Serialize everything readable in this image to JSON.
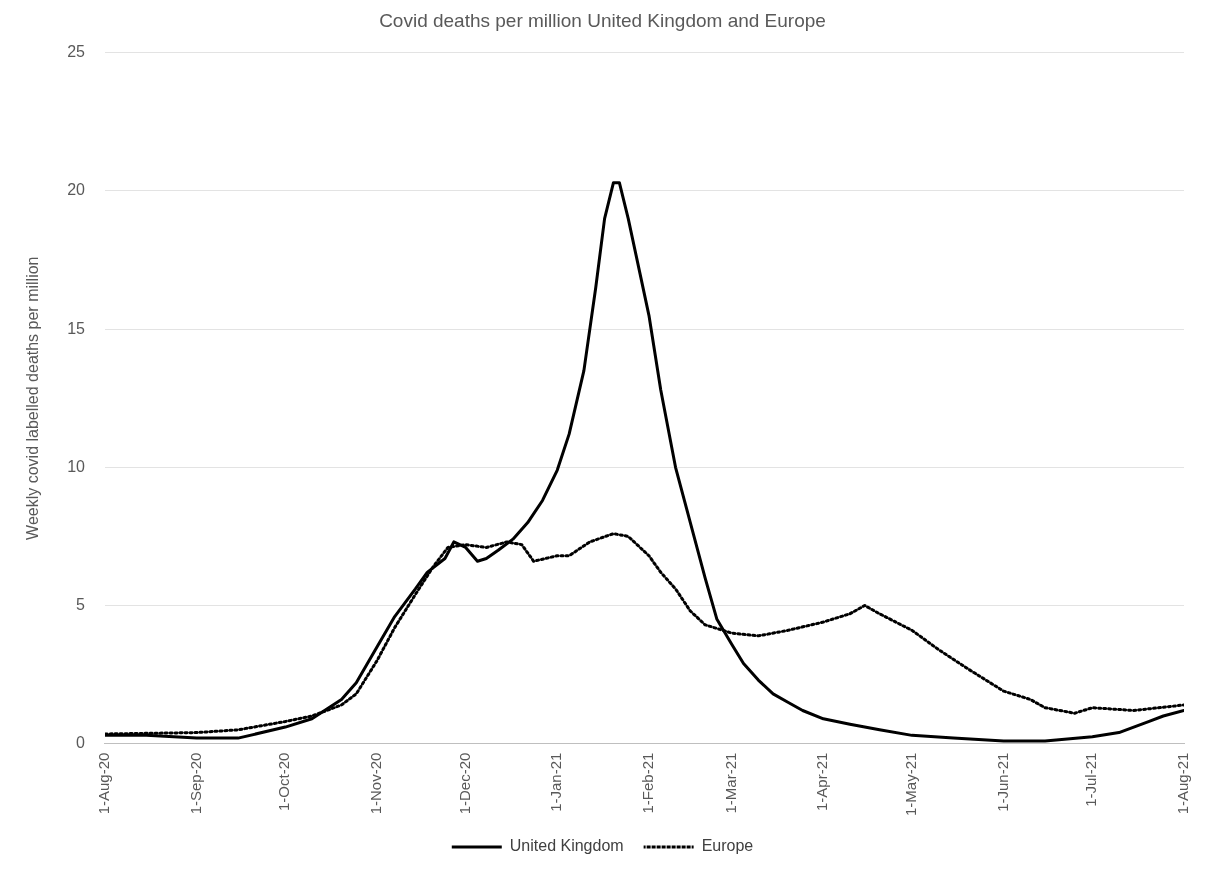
{
  "chart_data": {
    "type": "line",
    "title": "Covid deaths per million United Kingdom and Europe",
    "ylabel": "Weekly covid labelled deaths per million",
    "xlim": [
      "2020-08-01",
      "2021-08-01"
    ],
    "xticks": [
      {
        "value": "2020-08-01",
        "label": "1-Aug-20"
      },
      {
        "value": "2020-09-01",
        "label": "1-Sep-20"
      },
      {
        "value": "2020-10-01",
        "label": "1-Oct-20"
      },
      {
        "value": "2020-11-01",
        "label": "1-Nov-20"
      },
      {
        "value": "2020-12-01",
        "label": "1-Dec-20"
      },
      {
        "value": "2021-01-01",
        "label": "1-Jan-21"
      },
      {
        "value": "2021-02-01",
        "label": "1-Feb-21"
      },
      {
        "value": "2021-03-01",
        "label": "1-Mar-21"
      },
      {
        "value": "2021-04-01",
        "label": "1-Apr-21"
      },
      {
        "value": "2021-05-01",
        "label": "1-May-21"
      },
      {
        "value": "2021-06-01",
        "label": "1-Jun-21"
      },
      {
        "value": "2021-07-01",
        "label": "1-Jul-21"
      },
      {
        "value": "2021-08-01",
        "label": "1-Aug-21"
      }
    ],
    "ylim": [
      0,
      25
    ],
    "yticks": [
      0,
      5,
      10,
      15,
      20,
      25
    ],
    "grid": "y",
    "legend": "bottom",
    "marker": "none",
    "series": [
      {
        "name": "United Kingdom",
        "color": "#000000",
        "line_style": "solid",
        "x": [
          "2020-08-01",
          "2020-08-15",
          "2020-09-01",
          "2020-09-15",
          "2020-10-01",
          "2020-10-10",
          "2020-10-20",
          "2020-10-25",
          "2020-11-01",
          "2020-11-07",
          "2020-11-14",
          "2020-11-18",
          "2020-11-24",
          "2020-11-27",
          "2020-12-01",
          "2020-12-05",
          "2020-12-08",
          "2020-12-12",
          "2020-12-17",
          "2020-12-22",
          "2020-12-27",
          "2021-01-01",
          "2021-01-05",
          "2021-01-10",
          "2021-01-14",
          "2021-01-17",
          "2021-01-20",
          "2021-01-22",
          "2021-01-25",
          "2021-01-29",
          "2021-02-01",
          "2021-02-05",
          "2021-02-10",
          "2021-02-15",
          "2021-02-20",
          "2021-02-24",
          "2021-03-01",
          "2021-03-05",
          "2021-03-10",
          "2021-03-15",
          "2021-03-20",
          "2021-03-25",
          "2021-04-01",
          "2021-04-10",
          "2021-04-20",
          "2021-05-01",
          "2021-05-15",
          "2021-06-01",
          "2021-06-15",
          "2021-07-01",
          "2021-07-10",
          "2021-07-20",
          "2021-07-25",
          "2021-08-01"
        ],
        "values": [
          0.3,
          0.3,
          0.2,
          0.2,
          0.6,
          0.9,
          1.6,
          2.2,
          3.5,
          4.6,
          5.6,
          6.2,
          6.7,
          7.3,
          7.1,
          6.6,
          6.7,
          7.0,
          7.4,
          8.0,
          8.8,
          9.9,
          11.2,
          13.5,
          16.5,
          19.0,
          20.3,
          20.3,
          19.0,
          17.0,
          15.5,
          12.8,
          10.0,
          8.0,
          6.0,
          4.5,
          3.6,
          2.9,
          2.3,
          1.8,
          1.5,
          1.2,
          0.9,
          0.7,
          0.5,
          0.3,
          0.2,
          0.1,
          0.1,
          0.25,
          0.4,
          0.8,
          1.0,
          1.2
        ]
      },
      {
        "name": "Europe",
        "color": "#000000",
        "line_style": "dotted",
        "x": [
          "2020-08-01",
          "2020-09-01",
          "2020-09-15",
          "2020-10-01",
          "2020-10-10",
          "2020-10-20",
          "2020-10-25",
          "2020-11-01",
          "2020-11-07",
          "2020-11-14",
          "2020-11-20",
          "2020-11-25",
          "2020-12-01",
          "2020-12-08",
          "2020-12-15",
          "2020-12-20",
          "2020-12-24",
          "2021-01-01",
          "2021-01-05",
          "2021-01-12",
          "2021-01-20",
          "2021-01-25",
          "2021-02-01",
          "2021-02-05",
          "2021-02-10",
          "2021-02-15",
          "2021-02-20",
          "2021-03-01",
          "2021-03-10",
          "2021-03-20",
          "2021-04-01",
          "2021-04-10",
          "2021-04-15",
          "2021-04-20",
          "2021-05-01",
          "2021-05-10",
          "2021-05-20",
          "2021-06-01",
          "2021-06-10",
          "2021-06-15",
          "2021-06-25",
          "2021-07-01",
          "2021-07-15",
          "2021-08-01"
        ],
        "values": [
          0.35,
          0.4,
          0.5,
          0.8,
          1.0,
          1.4,
          1.8,
          3.0,
          4.2,
          5.4,
          6.4,
          7.1,
          7.2,
          7.1,
          7.3,
          7.2,
          6.6,
          6.8,
          6.8,
          7.3,
          7.6,
          7.5,
          6.8,
          6.2,
          5.6,
          4.8,
          4.3,
          4.0,
          3.9,
          4.1,
          4.4,
          4.7,
          5.0,
          4.7,
          4.1,
          3.4,
          2.7,
          1.9,
          1.6,
          1.3,
          1.1,
          1.3,
          1.2,
          1.4
        ]
      }
    ]
  }
}
